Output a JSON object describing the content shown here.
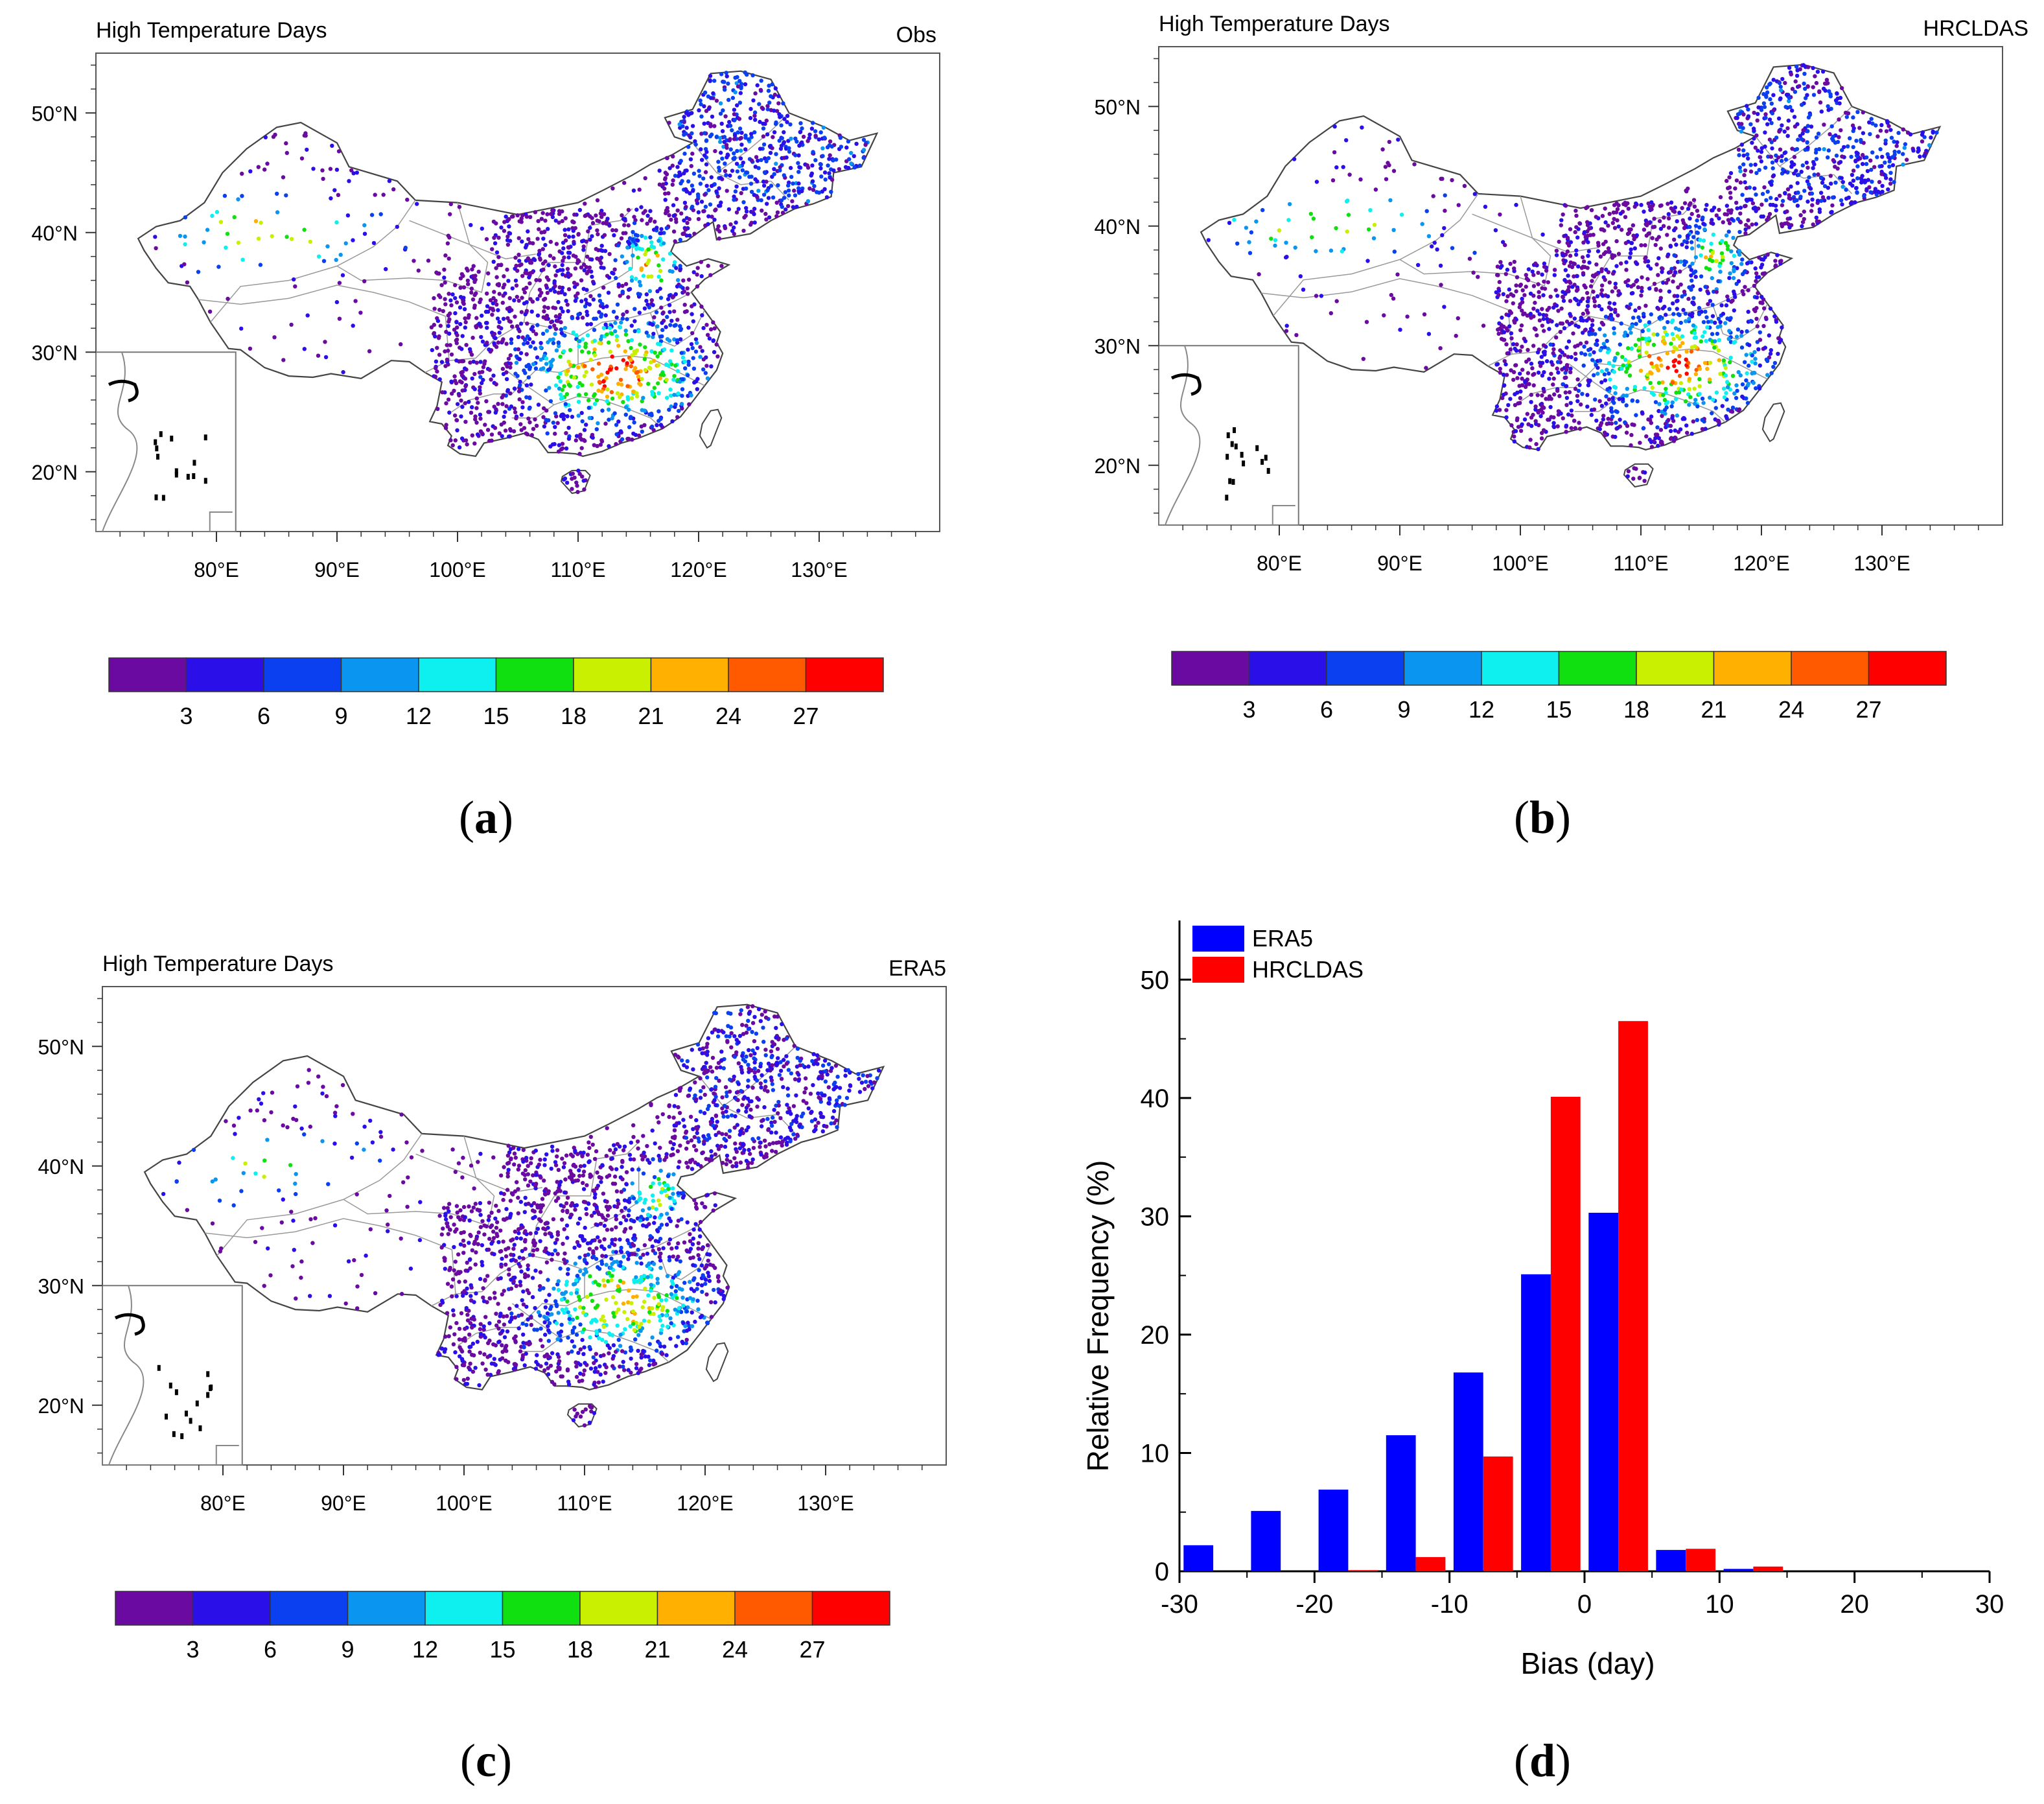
{
  "maps": [
    {
      "id": "a",
      "title": "High Temperature Days",
      "source": "Obs",
      "panel_label": "a",
      "lat_labels": [
        "50°N",
        "40°N",
        "30°N",
        "20°N"
      ],
      "lon_labels": [
        "80°E",
        "90°E",
        "100°E",
        "110°E",
        "120°E",
        "130°E"
      ]
    },
    {
      "id": "b",
      "title": "High Temperature Days",
      "source": "HRCLDAS",
      "panel_label": "b",
      "lat_labels": [
        "50°N",
        "40°N",
        "30°N",
        "20°N"
      ],
      "lon_labels": [
        "80°E",
        "90°E",
        "100°E",
        "110°E",
        "120°E",
        "130°E"
      ]
    },
    {
      "id": "c",
      "title": "High Temperature Days",
      "source": "ERA5",
      "panel_label": "c",
      "lat_labels": [
        "50°N",
        "40°N",
        "30°N",
        "20°N"
      ],
      "lon_labels": [
        "80°E",
        "90°E",
        "100°E",
        "110°E",
        "120°E",
        "130°E"
      ]
    }
  ],
  "colorbar": {
    "colors": [
      "#6a0aa0",
      "#2a0fe8",
      "#0a40f0",
      "#0a96f0",
      "#0ef0f0",
      "#10e010",
      "#c8f000",
      "#ffb000",
      "#ff5a00",
      "#ff0000"
    ],
    "tick_labels": [
      "3",
      "6",
      "9",
      "12",
      "15",
      "18",
      "21",
      "24",
      "27"
    ]
  },
  "chart_data": {
    "type": "bar",
    "panel_label": "d",
    "title": "",
    "xlabel": "Bias (day)",
    "ylabel": "Relative Frequency (%)",
    "xlim": [
      -30,
      30
    ],
    "ylim": [
      0,
      55
    ],
    "x_ticks": [
      "-30",
      "-20",
      "-10",
      "0",
      "10",
      "20",
      "30"
    ],
    "y_ticks": [
      "0",
      "10",
      "20",
      "30",
      "40",
      "50"
    ],
    "bin_centers": [
      -27.5,
      -22.5,
      -17.5,
      -12.5,
      -7.5,
      -2.5,
      2.5,
      7.5,
      12.5,
      17.5,
      22.5,
      27.5
    ],
    "legend_position": "top-left",
    "series": [
      {
        "name": "ERA5",
        "color": "#0000ff",
        "values": [
          2.2,
          5.1,
          6.9,
          11.5,
          16.8,
          25.1,
          30.3,
          1.8,
          0.2,
          0,
          0,
          0
        ]
      },
      {
        "name": "HRCLDAS",
        "color": "#ff0000",
        "values": [
          0,
          0,
          0.1,
          1.2,
          9.7,
          40.1,
          46.5,
          1.9,
          0.4,
          0,
          0,
          0
        ]
      }
    ]
  }
}
